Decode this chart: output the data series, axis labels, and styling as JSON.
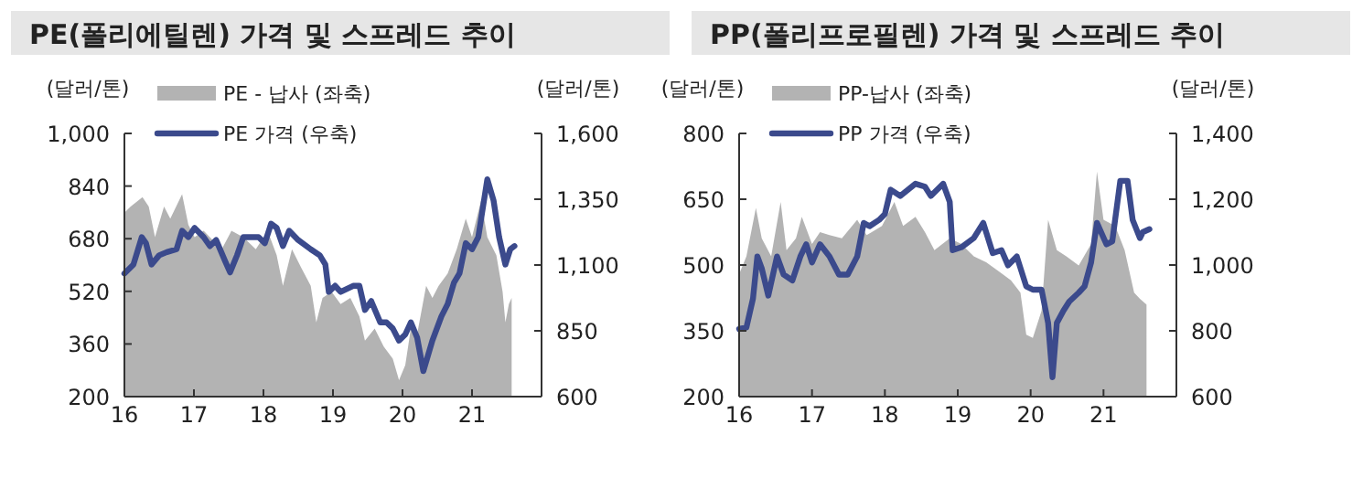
{
  "chart_data": [
    {
      "type": "line",
      "title": "PE(폴리에틸렌) 가격 및 스프레드 추이",
      "ylabel": "(달러/톤)",
      "y2label": "(달러/톤)",
      "legend": "top left",
      "xlim": [
        2016,
        2022
      ],
      "xticks": [
        {
          "value": 2016,
          "label": "16"
        },
        {
          "value": 2017,
          "label": "17"
        },
        {
          "value": 2018,
          "label": "18"
        },
        {
          "value": 2019,
          "label": "19"
        },
        {
          "value": 2020,
          "label": "20"
        },
        {
          "value": 2021,
          "label": "21"
        }
      ],
      "ylim": [
        200,
        1000
      ],
      "yticks": [
        200,
        360,
        520,
        680,
        840,
        {
          "value": 1000,
          "label": "1,000"
        }
      ],
      "y2lim": [
        600,
        1600
      ],
      "y2ticks": [
        600,
        850,
        {
          "value": 1100,
          "label": "1,100"
        },
        {
          "value": 1350,
          "label": "1,350"
        },
        {
          "value": 1600,
          "label": "1,600"
        }
      ],
      "series": [
        {
          "name": "PE - 납사 (좌축)",
          "type": "area",
          "color": "#b3b3b3",
          "x": [
            2016,
            2016.09,
            2016.26,
            2016.35,
            2016.44,
            2016.57,
            2016.66,
            2016.83,
            2016.92,
            2017.01,
            2017.14,
            2017.27,
            2017.4,
            2017.54,
            2017.71,
            2017.89,
            2018.06,
            2018.19,
            2018.28,
            2018.41,
            2018.54,
            2018.68,
            2018.76,
            2018.85,
            2018.98,
            2019.11,
            2019.25,
            2019.38,
            2019.46,
            2019.6,
            2019.73,
            2019.86,
            2019.95,
            2020.04,
            2020.12,
            2020.21,
            2020.34,
            2020.43,
            2020.52,
            2020.65,
            2020.78,
            2020.91,
            2021,
            2021.13,
            2021.22,
            2021.35,
            2021.44,
            2021.48,
            2021.53,
            2021.57
          ],
          "values": [
            759,
            778,
            806,
            778,
            685,
            778,
            741,
            815,
            722,
            685,
            704,
            676,
            648,
            704,
            685,
            648,
            704,
            630,
            537,
            648,
            593,
            537,
            426,
            500,
            519,
            481,
            500,
            444,
            370,
            407,
            352,
            315,
            250,
            296,
            407,
            389,
            537,
            500,
            537,
            574,
            648,
            741,
            685,
            796,
            685,
            630,
            519,
            426,
            481,
            500
          ]
        },
        {
          "name": "PE 가격 (우축)",
          "type": "line",
          "axis": "y2",
          "color": "#3b4a8c",
          "x": [
            2016,
            2016.13,
            2016.25,
            2016.31,
            2016.39,
            2016.5,
            2016.61,
            2016.75,
            2016.83,
            2016.92,
            2017.01,
            2017.14,
            2017.23,
            2017.32,
            2017.45,
            2017.52,
            2017.62,
            2017.71,
            2017.8,
            2017.93,
            2018.02,
            2018.11,
            2018.19,
            2018.28,
            2018.37,
            2018.5,
            2018.68,
            2018.81,
            2018.89,
            2018.94,
            2019.03,
            2019.11,
            2019.29,
            2019.38,
            2019.46,
            2019.55,
            2019.68,
            2019.77,
            2019.86,
            2019.95,
            2020.04,
            2020.12,
            2020.21,
            2020.3,
            2020.43,
            2020.56,
            2020.65,
            2020.74,
            2020.82,
            2020.91,
            2021,
            2021.09,
            2021.22,
            2021.31,
            2021.39,
            2021.48,
            2021.55,
            2021.61
          ],
          "values": [
            1068,
            1102,
            1206,
            1183,
            1102,
            1137,
            1149,
            1160,
            1230,
            1206,
            1241,
            1206,
            1172,
            1195,
            1114,
            1072,
            1137,
            1206,
            1206,
            1206,
            1183,
            1257,
            1241,
            1172,
            1230,
            1195,
            1160,
            1137,
            1102,
            998,
            1021,
            998,
            1021,
            1021,
            929,
            963,
            882,
            882,
            859,
            813,
            836,
            882,
            825,
            697,
            813,
            905,
            952,
            1033,
            1068,
            1183,
            1160,
            1206,
            1426,
            1345,
            1206,
            1102,
            1160,
            1172
          ]
        }
      ]
    },
    {
      "type": "line",
      "title": "PP(폴리프로필렌) 가격 및 스프레드 추이",
      "ylabel": "(달러/톤)",
      "y2label": "(달러/톤)",
      "legend": "top left",
      "xlim": [
        2016,
        2022
      ],
      "xticks": [
        {
          "value": 2016,
          "label": "16"
        },
        {
          "value": 2017,
          "label": "17"
        },
        {
          "value": 2018,
          "label": "18"
        },
        {
          "value": 2019,
          "label": "19"
        },
        {
          "value": 2020,
          "label": "20"
        },
        {
          "value": 2021,
          "label": "21"
        }
      ],
      "ylim": [
        200,
        800
      ],
      "yticks": [
        200,
        350,
        500,
        650,
        800
      ],
      "y2lim": [
        600,
        1400
      ],
      "y2ticks": [
        600,
        800,
        {
          "value": 1000,
          "label": "1,000"
        },
        {
          "value": 1200,
          "label": "1,200"
        },
        {
          "value": 1400,
          "label": "1,400"
        }
      ],
      "series": [
        {
          "name": "PP-납사 (좌축)",
          "type": "area",
          "color": "#b3b3b3",
          "x": [
            2016,
            2016.1,
            2016.23,
            2016.31,
            2016.44,
            2016.57,
            2016.65,
            2016.78,
            2016.86,
            2017,
            2017.11,
            2017.24,
            2017.41,
            2017.62,
            2017.75,
            2017.96,
            2018.13,
            2018.25,
            2018.42,
            2018.55,
            2018.68,
            2018.89,
            2019.05,
            2019.22,
            2019.39,
            2019.56,
            2019.73,
            2019.86,
            2019.94,
            2020.03,
            2020.15,
            2020.24,
            2020.36,
            2020.49,
            2020.66,
            2020.83,
            2020.91,
            2021,
            2021.16,
            2021.29,
            2021.42,
            2021.5,
            2021.59
          ],
          "values": [
            479,
            520,
            630,
            561,
            520,
            644,
            534,
            561,
            610,
            548,
            575,
            568,
            561,
            603,
            568,
            589,
            644,
            589,
            610,
            575,
            534,
            561,
            548,
            520,
            506,
            486,
            465,
            437,
            341,
            334,
            396,
            603,
            534,
            520,
            499,
            548,
            713,
            603,
            589,
            534,
            437,
            423,
            410
          ]
        },
        {
          "name": "PP 가격 (우축)",
          "type": "line",
          "axis": "y2",
          "color": "#3b4a8c",
          "x": [
            2016,
            2016.1,
            2016.19,
            2016.25,
            2016.31,
            2016.4,
            2016.52,
            2016.61,
            2016.73,
            2016.84,
            2016.92,
            2017,
            2017.11,
            2017.24,
            2017.37,
            2017.49,
            2017.62,
            2017.71,
            2017.79,
            2017.92,
            2018,
            2018.08,
            2018.21,
            2018.42,
            2018.55,
            2018.63,
            2018.8,
            2018.89,
            2018.93,
            2019.05,
            2019.22,
            2019.35,
            2019.48,
            2019.6,
            2019.69,
            2019.81,
            2019.94,
            2020.03,
            2020.15,
            2020.24,
            2020.3,
            2020.36,
            2020.45,
            2020.53,
            2020.66,
            2020.74,
            2020.83,
            2020.91,
            2021.04,
            2021.12,
            2021.23,
            2021.33,
            2021.4,
            2021.5,
            2021.54,
            2021.63
          ],
          "values": [
            806,
            810,
            898,
            1026,
            990,
            907,
            1026,
            971,
            953,
            1026,
            1063,
            1008,
            1063,
            1026,
            971,
            971,
            1026,
            1128,
            1118,
            1137,
            1155,
            1229,
            1210,
            1247,
            1238,
            1210,
            1247,
            1192,
            1045,
            1054,
            1082,
            1128,
            1036,
            1045,
            999,
            1026,
            935,
            925,
            925,
            824,
            659,
            824,
            861,
            889,
            916,
            935,
            1008,
            1128,
            1063,
            1072,
            1256,
            1256,
            1137,
            1082,
            1100,
            1109
          ]
        }
      ]
    }
  ]
}
